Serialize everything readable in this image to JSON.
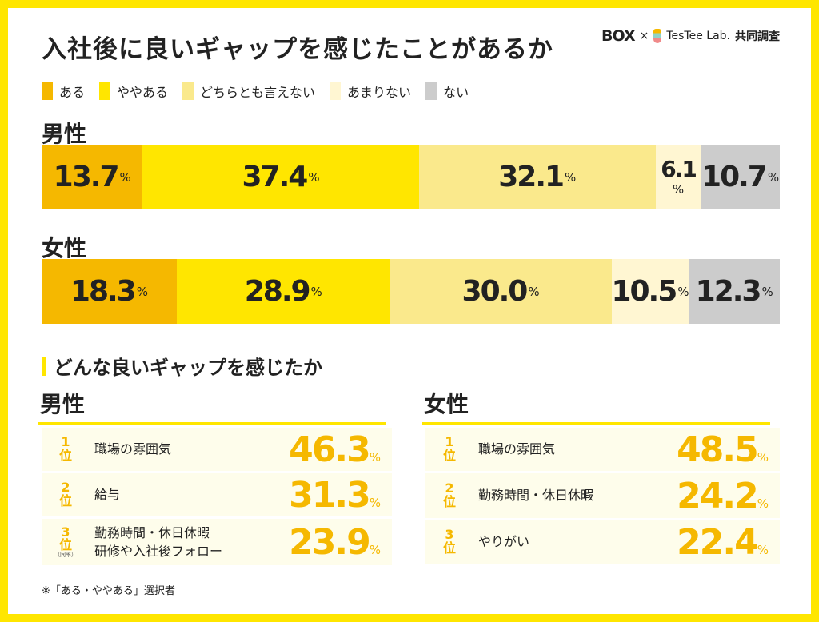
{
  "title": "入社後に良いギャップを感じたことがあるか",
  "logo": {
    "brand": "BOX",
    "times": "×",
    "partner": "TesTee Lab.",
    "joint": "共同調査"
  },
  "colors": {
    "ある": "#F5B800",
    "ややある": "#FFE600",
    "どちらとも言えない": "#FAE98C",
    "あまりない": "#FFF6D2",
    "ない": "#CCCCCC",
    "accent": "#FFE600"
  },
  "chart_data": {
    "type": "bar",
    "stacked": true,
    "orientation": "horizontal",
    "unit": "%",
    "categories": [
      "男性",
      "女性"
    ],
    "series": [
      {
        "name": "ある",
        "values": [
          13.7,
          18.3
        ]
      },
      {
        "name": "ややある",
        "values": [
          37.4,
          28.9
        ]
      },
      {
        "name": "どちらとも言えない",
        "values": [
          32.1,
          30.0
        ]
      },
      {
        "name": "あまりない",
        "values": [
          6.1,
          10.5
        ]
      },
      {
        "name": "ない",
        "values": [
          10.7,
          12.3
        ]
      }
    ],
    "legend": "top-left"
  },
  "ranking": {
    "heading": "どんな良いギャップを感じたか",
    "rank_suffix": "位",
    "tie_label": "（同率）",
    "groups": [
      {
        "label": "男性",
        "items": [
          {
            "rank": "1",
            "label": "職場の雰囲気",
            "value": "46.3"
          },
          {
            "rank": "2",
            "label": "給与",
            "value": "31.3"
          },
          {
            "rank": "3",
            "label": "勤務時間・休日休暇\n研修や入社後フォロー",
            "value": "23.9",
            "tie": true
          }
        ]
      },
      {
        "label": "女性",
        "items": [
          {
            "rank": "1",
            "label": "職場の雰囲気",
            "value": "48.5"
          },
          {
            "rank": "2",
            "label": "勤務時間・休日休暇",
            "value": "24.2"
          },
          {
            "rank": "3",
            "label": "やりがい",
            "value": "22.4"
          }
        ]
      }
    ]
  },
  "note": "※「ある・ややある」選択者"
}
